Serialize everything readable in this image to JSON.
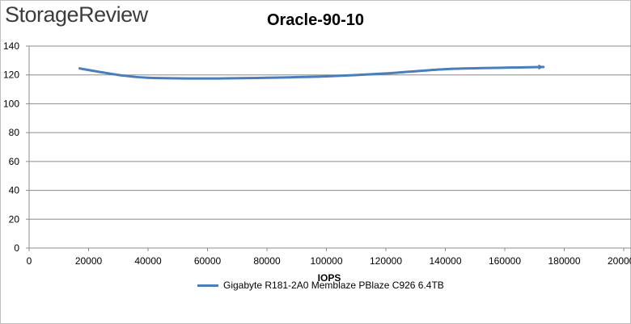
{
  "brand": "StorageReview",
  "chart_data": {
    "type": "line",
    "title": "Oracle-90-10",
    "xlabel": "IOPS",
    "ylabel": "",
    "xlim": [
      0,
      200000
    ],
    "ylim": [
      0,
      140
    ],
    "x_ticks": [
      0,
      20000,
      40000,
      60000,
      80000,
      100000,
      120000,
      140000,
      160000,
      180000,
      200000
    ],
    "y_ticks": [
      0,
      20,
      40,
      60,
      80,
      100,
      120,
      140
    ],
    "grid": true,
    "legend_position": "bottom",
    "series": [
      {
        "name": "Gigabyte R181-2A0 Memblaze PBlaze C926 6.4TB",
        "color": "#4a7ebb",
        "x": [
          17000,
          30000,
          40000,
          60000,
          80000,
          100000,
          120000,
          140000,
          160000,
          173000
        ],
        "y": [
          124.5,
          120,
          118,
          117.5,
          118,
          119,
          121,
          124,
          125,
          125.5
        ]
      }
    ]
  }
}
